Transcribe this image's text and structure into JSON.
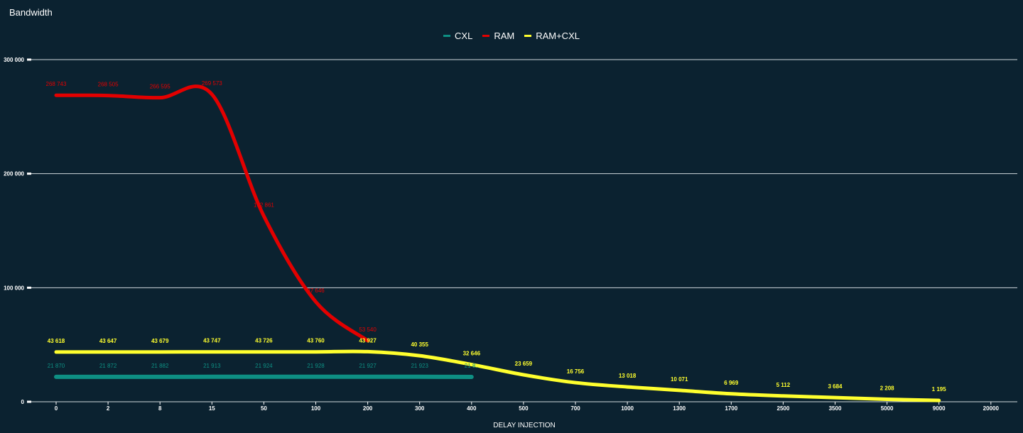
{
  "chart_data": {
    "type": "line",
    "title": "Bandwidth",
    "xlabel": "DELAY INJECTION",
    "ylabel": "",
    "categories": [
      "0",
      "2",
      "8",
      "15",
      "50",
      "100",
      "200",
      "300",
      "400",
      "500",
      "700",
      "1000",
      "1300",
      "1700",
      "2500",
      "3500",
      "5000",
      "9000",
      "20000"
    ],
    "ylim": [
      0,
      300000
    ],
    "yticks": [
      0,
      100000,
      200000,
      300000
    ],
    "ytick_labels": [
      "0",
      "100 000",
      "200 000",
      "300 000"
    ],
    "grid": true,
    "legend_position": "top-center",
    "series": [
      {
        "name": "CXL",
        "color": "#0e8f83",
        "values": [
          21870,
          21872,
          21882,
          21913,
          21924,
          21928,
          21927,
          21923,
          21800,
          null,
          null,
          null,
          null,
          null,
          null,
          null,
          null,
          null,
          null
        ],
        "labels": [
          "21 870",
          "21 872",
          "21 882",
          "21 913",
          "21 924",
          "21 928",
          "21 927",
          "21 923",
          "21 8..",
          null,
          null,
          null,
          null,
          null,
          null,
          null,
          null,
          null,
          null
        ]
      },
      {
        "name": "RAM",
        "color": "#e30000",
        "values": [
          268743,
          268505,
          266595,
          269573,
          162861,
          87646,
          53540,
          null,
          null,
          null,
          null,
          null,
          null,
          null,
          null,
          null,
          null,
          null,
          null
        ],
        "labels": [
          "268 743",
          "268 505",
          "266 595",
          "269 573",
          "162 861",
          "87 646",
          "53 540",
          null,
          null,
          null,
          null,
          null,
          null,
          null,
          null,
          null,
          null,
          null,
          null
        ]
      },
      {
        "name": "RAM+CXL",
        "color": "#ffff2e",
        "values": [
          43618,
          43647,
          43679,
          43747,
          43726,
          43760,
          43927,
          40355,
          32646,
          23659,
          16756,
          13018,
          10071,
          6969,
          5112,
          3684,
          2208,
          1195,
          null
        ],
        "labels": [
          "43 618",
          "43 647",
          "43 679",
          "43 747",
          "43 726",
          "43 760",
          "43 927",
          "40 355",
          "32 646",
          "23 659",
          "16 756",
          "13 018",
          "10 071",
          "6 969",
          "5 112",
          "3 684",
          "2 208",
          "1 195",
          null
        ]
      }
    ]
  }
}
